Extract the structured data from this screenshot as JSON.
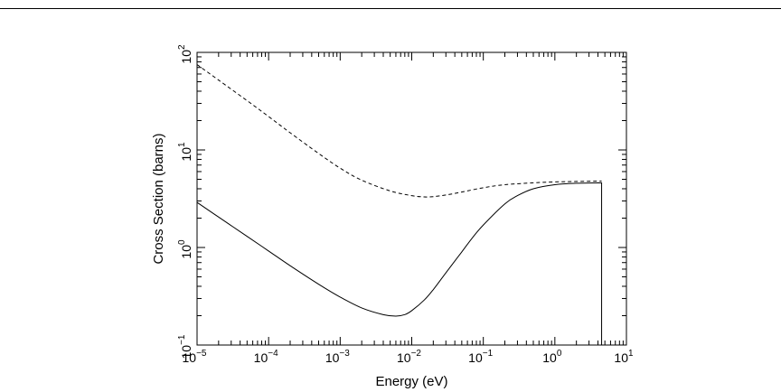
{
  "chart_data": {
    "type": "line",
    "title": "",
    "xlabel": "Energy (eV)",
    "ylabel": "Cross Section (barns)",
    "xscale": "log",
    "yscale": "log",
    "xlim": [
      1e-05,
      10
    ],
    "ylim": [
      0.1,
      100
    ],
    "grid": false,
    "legend": "none",
    "x_ticks": [
      {
        "value": 1e-05,
        "base": "10",
        "exp": "−5"
      },
      {
        "value": 0.0001,
        "base": "10",
        "exp": "−4"
      },
      {
        "value": 0.001,
        "base": "10",
        "exp": "−3"
      },
      {
        "value": 0.01,
        "base": "10",
        "exp": "−2"
      },
      {
        "value": 0.1,
        "base": "10",
        "exp": "−1"
      },
      {
        "value": 1,
        "base": "10",
        "exp": "0"
      },
      {
        "value": 10,
        "base": "10",
        "exp": "1"
      }
    ],
    "y_ticks": [
      {
        "value": 0.1,
        "base": "10",
        "exp": "−1"
      },
      {
        "value": 1,
        "base": "10",
        "exp": "0"
      },
      {
        "value": 10,
        "base": "10",
        "exp": "1"
      },
      {
        "value": 100,
        "base": "10",
        "exp": "2"
      }
    ],
    "series": [
      {
        "style": "solid",
        "color": "#000000",
        "points": [
          [
            1e-05,
            2.9
          ],
          [
            2e-05,
            2.05
          ],
          [
            5e-05,
            1.3
          ],
          [
            0.0001,
            0.92
          ],
          [
            0.0002,
            0.65
          ],
          [
            0.0005,
            0.42
          ],
          [
            0.001,
            0.31
          ],
          [
            0.002,
            0.24
          ],
          [
            0.004,
            0.205
          ],
          [
            0.006,
            0.198
          ],
          [
            0.008,
            0.205
          ],
          [
            0.01,
            0.225
          ],
          [
            0.015,
            0.29
          ],
          [
            0.02,
            0.37
          ],
          [
            0.03,
            0.55
          ],
          [
            0.05,
            0.9
          ],
          [
            0.07,
            1.25
          ],
          [
            0.1,
            1.7
          ],
          [
            0.2,
            2.8
          ],
          [
            0.3,
            3.4
          ],
          [
            0.5,
            4.0
          ],
          [
            1.0,
            4.4
          ],
          [
            2.0,
            4.55
          ],
          [
            4.5,
            4.6
          ],
          [
            4.5,
            0.1
          ]
        ]
      },
      {
        "style": "dashed",
        "color": "#000000",
        "points": [
          [
            1e-05,
            75
          ],
          [
            2e-05,
            52
          ],
          [
            5e-05,
            32
          ],
          [
            0.0001,
            22
          ],
          [
            0.0002,
            15
          ],
          [
            0.0005,
            9.2
          ],
          [
            0.001,
            6.5
          ],
          [
            0.002,
            4.9
          ],
          [
            0.005,
            3.8
          ],
          [
            0.01,
            3.4
          ],
          [
            0.015,
            3.3
          ],
          [
            0.02,
            3.32
          ],
          [
            0.03,
            3.45
          ],
          [
            0.05,
            3.7
          ],
          [
            0.1,
            4.1
          ],
          [
            0.2,
            4.4
          ],
          [
            0.5,
            4.6
          ],
          [
            1.0,
            4.7
          ],
          [
            2.0,
            4.75
          ],
          [
            4.5,
            4.8
          ]
        ]
      }
    ]
  }
}
